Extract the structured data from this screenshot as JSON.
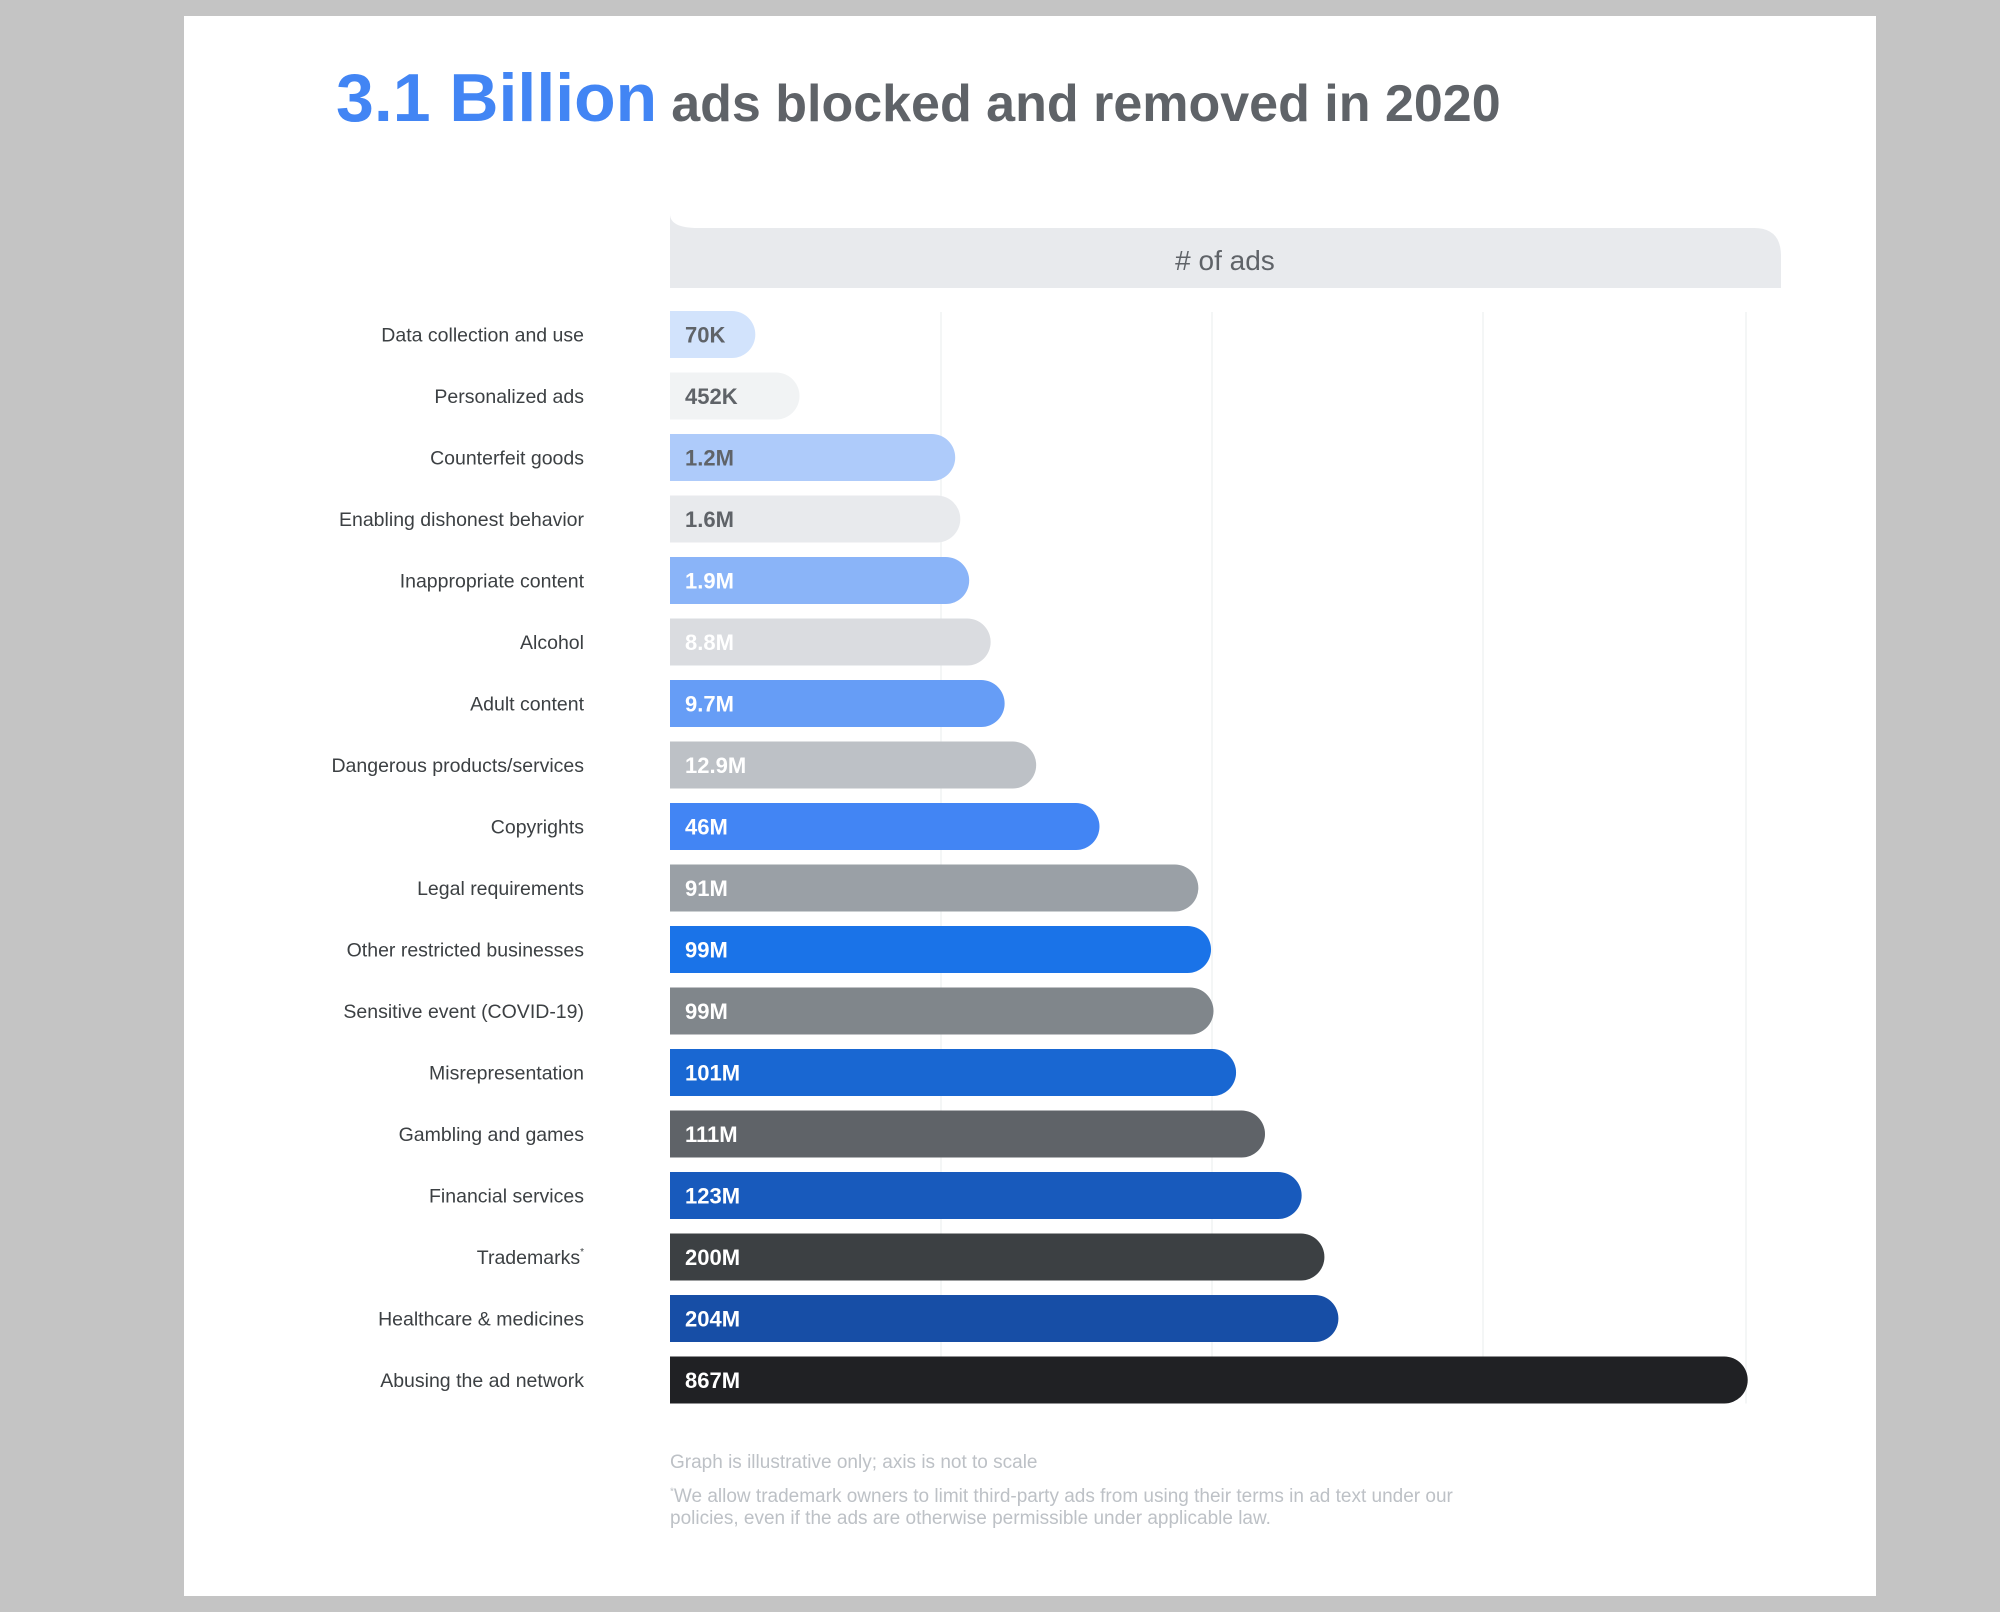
{
  "title": {
    "highlight": "3.1 Billion",
    "rest": "ads blocked and removed in 2020"
  },
  "chart_data": {
    "type": "bar",
    "orientation": "horizontal",
    "header": "# of ads",
    "grid": true,
    "categories": [
      "Data collection and use",
      "Personalized ads",
      "Counterfeit goods",
      "Enabling dishonest behavior",
      "Inappropriate content",
      "Alcohol",
      "Adult content",
      "Dangerous products/services",
      "Copyrights",
      "Legal requirements",
      "Other restricted businesses",
      "Sensitive event (COVID-19)",
      "Misrepresentation",
      "Gambling and games",
      "Financial services",
      "Trademarks",
      "Healthcare & medicines",
      "Abusing the ad network"
    ],
    "category_markers": [
      "",
      "",
      "",
      "",
      "",
      "",
      "",
      "",
      "",
      "",
      "",
      "",
      "",
      "",
      "",
      "*",
      "",
      ""
    ],
    "values": [
      70000,
      452000,
      1200000,
      1600000,
      1900000,
      8800000,
      9700000,
      12900000,
      46000000,
      91000000,
      99000000,
      99000000,
      101000000,
      111000000,
      123000000,
      200000000,
      204000000,
      867000000
    ],
    "value_labels": [
      "70K",
      "452K",
      "1.2M",
      "1.6M",
      "1.9M",
      "8.8M",
      "9.7M",
      "12.9M",
      "46M",
      "91M",
      "99M",
      "99M",
      "101M",
      "111M",
      "123M",
      "200M",
      "204M",
      "867M"
    ],
    "colors": [
      "#d2e3fc",
      "#f1f3f4",
      "#aecbfa",
      "#e8eaed",
      "#8ab4f8",
      "#dadce0",
      "#669df6",
      "#bdc1c6",
      "#4285f4",
      "#9aa0a6",
      "#1a73e8",
      "#80868b",
      "#1967d2",
      "#5f6368",
      "#185abc",
      "#3c4043",
      "#174ea6",
      "#202124"
    ],
    "label_colors": [
      "#5f6368",
      "#5f6368",
      "#5f6368",
      "#5f6368",
      "#ffffff",
      "#ffffff",
      "#ffffff",
      "#ffffff",
      "#ffffff",
      "#ffffff",
      "#ffffff",
      "#ffffff",
      "#ffffff",
      "#ffffff",
      "#ffffff",
      "#ffffff",
      "#ffffff",
      "#ffffff"
    ],
    "illustrative_lengths": [
      0.0787,
      0.1195,
      0.2631,
      0.2678,
      0.276,
      0.2958,
      0.3087,
      0.3378,
      0.3962,
      0.4874,
      0.4991,
      0.5014,
      0.5222,
      0.5489,
      0.5827,
      0.6037,
      0.6166,
      0.9942
    ]
  },
  "notes": {
    "scale": "Graph is illustrative only; axis is not to scale",
    "trademark_marker": "*",
    "trademark": "We allow trademark owners to limit third-party ads from using their terms in ad text under our policies, even if the ads are otherwise permissible under applicable law."
  }
}
